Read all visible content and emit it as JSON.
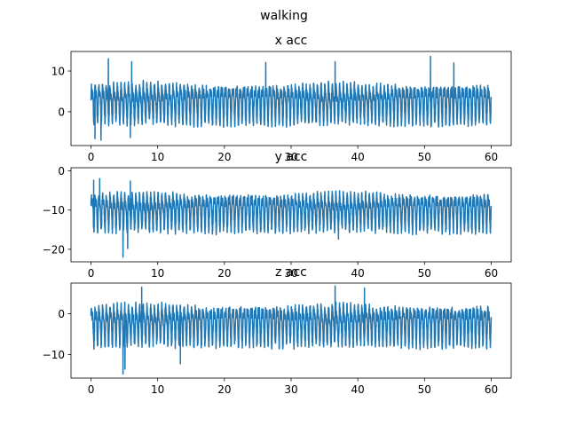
{
  "figure": {
    "suptitle": "walking",
    "line_color": "#1f77b4"
  },
  "chart_data": [
    {
      "type": "line",
      "title": "x acc",
      "xlabel": "",
      "ylabel": "",
      "xlim": [
        -3,
        63
      ],
      "ylim": [
        -8.3,
        14.8
      ],
      "xticks": [
        0,
        10,
        20,
        30,
        40,
        50,
        60
      ],
      "yticks": [
        0,
        10
      ],
      "grid": false,
      "legend": "none",
      "series": [
        {
          "signal": {
            "x_start": 0,
            "x_end": 60,
            "mean": 2.5,
            "amplitude": 3.6,
            "noise": 1.2,
            "cycles_per_unit": 1.8,
            "min": -6.5,
            "max": 13.5
          },
          "peaks": [
            [
              2.6,
              13.0
            ],
            [
              6.1,
              12.3
            ],
            [
              26.2,
              12.1
            ],
            [
              36.6,
              12.3
            ],
            [
              50.9,
              13.6
            ],
            [
              54.4,
              12.0
            ]
          ],
          "troughs": [
            [
              0.6,
              -6.6
            ],
            [
              1.5,
              -7.0
            ],
            [
              5.9,
              -6.3
            ]
          ]
        }
      ]
    },
    {
      "type": "line",
      "title": "y acc",
      "xlabel": "",
      "ylabel": "",
      "xlim": [
        -3,
        63
      ],
      "ylim": [
        -23.2,
        0.8
      ],
      "xticks": [
        0,
        10,
        20,
        30,
        40,
        50,
        60
      ],
      "yticks": [
        -20,
        -10,
        0
      ],
      "grid": false,
      "legend": "none",
      "series": [
        {
          "signal": {
            "x_start": 0,
            "x_end": 60,
            "mean": -10,
            "amplitude": 3.6,
            "noise": 1.1,
            "cycles_per_unit": 1.8,
            "min": -18,
            "max": -2
          },
          "peaks": [
            [
              0.4,
              -2.4
            ],
            [
              1.3,
              -2.0
            ],
            [
              4.8,
              -0.5
            ],
            [
              5.9,
              -2.6
            ]
          ],
          "troughs": [
            [
              4.8,
              -22.0
            ],
            [
              5.5,
              -19.8
            ],
            [
              37.1,
              -17.4
            ]
          ]
        }
      ]
    },
    {
      "type": "line",
      "title": "z acc",
      "xlabel": "",
      "ylabel": "",
      "xlim": [
        -3,
        63
      ],
      "ylim": [
        -15.8,
        7.5
      ],
      "xticks": [
        0,
        10,
        20,
        30,
        40,
        50,
        60
      ],
      "yticks": [
        -10,
        0
      ],
      "grid": false,
      "legend": "none",
      "series": [
        {
          "signal": {
            "x_start": 0,
            "x_end": 60,
            "mean": -2.3,
            "amplitude": 3.7,
            "noise": 1.2,
            "cycles_per_unit": 1.8,
            "min": -12.5,
            "max": 6.2
          },
          "peaks": [
            [
              7.6,
              6.5
            ],
            [
              36.6,
              6.8
            ],
            [
              41.0,
              6.3
            ]
          ],
          "troughs": [
            [
              4.8,
              -14.8
            ],
            [
              5.1,
              -13.6
            ],
            [
              13.4,
              -12.3
            ]
          ]
        }
      ]
    }
  ]
}
